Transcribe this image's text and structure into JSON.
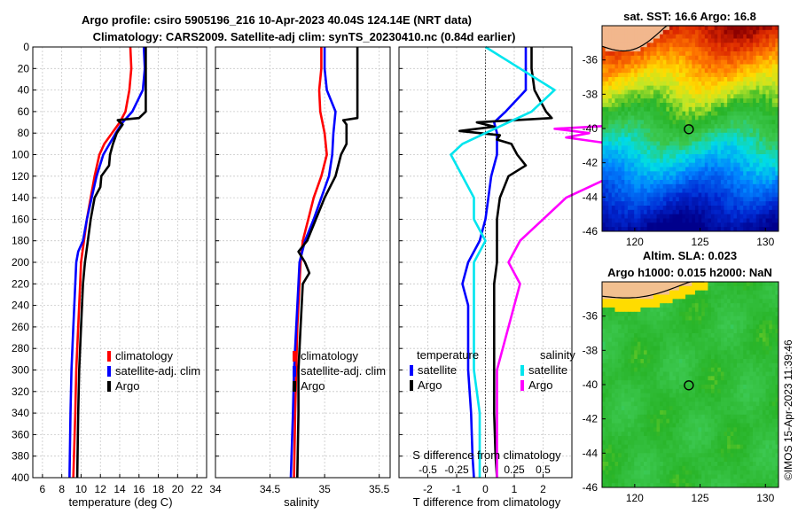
{
  "figure": {
    "title_line1": "Argo profile: csiro 5905196_216 10-Apr-2023 40.04S 124.14E (NRT data)",
    "title_line2": "Climatology: CARS2009. Satellite-adj clim: synTS_20230410.nc (0.84d earlier)",
    "watermark": "©IMOS 15-Apr-2023 11:39:46"
  },
  "colors": {
    "red": "#ff0000",
    "blue": "#0000ff",
    "black": "#000000",
    "cyan": "#00e5ee",
    "magenta": "#ff00ff"
  },
  "chart_data": [
    {
      "type": "line",
      "name": "temperature-profile",
      "xlabel": "temperature (deg C)",
      "ylabel": "",
      "xlim": [
        5,
        23
      ],
      "ylim": [
        0,
        400
      ],
      "xticks": [
        6,
        8,
        10,
        12,
        14,
        16,
        18,
        20,
        22
      ],
      "yticks": [
        0,
        20,
        40,
        60,
        80,
        100,
        120,
        140,
        160,
        180,
        200,
        220,
        240,
        260,
        280,
        300,
        320,
        340,
        360,
        380,
        400
      ],
      "legend": [
        "climatology",
        "satellite-adj. clim",
        "Argo"
      ],
      "series": [
        {
          "name": "climatology",
          "color": "red",
          "depth": [
            0,
            20,
            40,
            60,
            70,
            80,
            90,
            100,
            120,
            140,
            160,
            180,
            200,
            220,
            260,
            300,
            340,
            400
          ],
          "values": [
            15.1,
            15.2,
            15.0,
            14.6,
            14.0,
            13.2,
            12.4,
            11.9,
            11.4,
            11.0,
            10.6,
            10.3,
            10.0,
            9.9,
            9.7,
            9.5,
            9.4,
            9.2
          ]
        },
        {
          "name": "satellite-adj. clim",
          "color": "blue",
          "depth": [
            0,
            20,
            40,
            60,
            70,
            80,
            100,
            120,
            140,
            160,
            180,
            190,
            200,
            220,
            260,
            300,
            340,
            400
          ],
          "values": [
            16.5,
            16.6,
            16.4,
            15.3,
            14.3,
            13.6,
            12.3,
            11.6,
            11.1,
            10.6,
            10.2,
            9.7,
            9.5,
            9.4,
            9.2,
            9.0,
            8.9,
            8.8
          ]
        },
        {
          "name": "Argo",
          "color": "black",
          "depth": [
            0,
            20,
            40,
            60,
            66,
            68,
            72,
            80,
            90,
            100,
            110,
            120,
            130,
            140,
            160,
            180,
            200,
            220,
            260,
            300,
            340,
            400
          ],
          "values": [
            16.7,
            16.7,
            16.7,
            16.7,
            16.0,
            13.8,
            14.3,
            13.7,
            13.3,
            13.0,
            12.9,
            12.1,
            12.0,
            11.4,
            11.0,
            10.7,
            10.4,
            10.2,
            10.0,
            9.8,
            9.7,
            9.6
          ]
        }
      ]
    },
    {
      "type": "line",
      "name": "salinity-profile",
      "xlabel": "salinity",
      "xlim": [
        34.0,
        35.6
      ],
      "xticks": [
        34,
        34.5,
        35,
        35.5
      ],
      "xticklabels": [
        "34",
        "34.5",
        "35",
        "35.5"
      ],
      "legend": [
        "climatology",
        "satellite-adj. clim",
        "Argo"
      ],
      "series": [
        {
          "name": "climatology",
          "color": "red",
          "depth": [
            0,
            20,
            40,
            60,
            80,
            100,
            120,
            140,
            160,
            180,
            200,
            220,
            260,
            300,
            340,
            400
          ],
          "values": [
            34.97,
            34.97,
            34.95,
            34.96,
            35.0,
            35.02,
            34.97,
            34.9,
            34.85,
            34.8,
            34.78,
            34.77,
            34.75,
            34.74,
            34.73,
            34.72
          ]
        },
        {
          "name": "satellite-adj. clim",
          "color": "blue",
          "depth": [
            0,
            20,
            40,
            60,
            80,
            100,
            120,
            140,
            160,
            180,
            200,
            220,
            260,
            300,
            340,
            400
          ],
          "values": [
            35.0,
            35.0,
            35.02,
            35.1,
            35.08,
            35.07,
            35.04,
            34.97,
            34.9,
            34.82,
            34.77,
            34.76,
            34.74,
            34.72,
            34.71,
            34.69
          ]
        },
        {
          "name": "Argo",
          "color": "black",
          "depth": [
            0,
            20,
            40,
            60,
            66,
            68,
            72,
            80,
            90,
            100,
            120,
            140,
            160,
            180,
            190,
            195,
            200,
            210,
            220,
            260,
            300,
            340,
            400
          ],
          "values": [
            35.3,
            35.3,
            35.3,
            35.3,
            35.3,
            35.17,
            35.2,
            35.2,
            35.2,
            35.15,
            35.1,
            35.0,
            34.92,
            34.84,
            34.76,
            34.79,
            34.82,
            34.86,
            34.8,
            34.78,
            34.76,
            34.76,
            34.75
          ]
        }
      ]
    },
    {
      "type": "line",
      "name": "difference-profile",
      "xlabel": "T difference from climatology",
      "xlabel_top": "S difference from climatology",
      "xlim": [
        -3.0,
        3.0
      ],
      "xticks": [
        -2,
        -1,
        0,
        1,
        2
      ],
      "s_xticklabels": [
        "-0.5",
        "-0.25",
        "0",
        "0.25",
        "0.5"
      ],
      "s_to_t_scale": 4,
      "legend_temperature": "temperature",
      "legend_salinity": "salinity",
      "legend_entries": [
        "satellite",
        "Argo",
        "satellite",
        "Argo"
      ],
      "series": [
        {
          "name": "temperature satellite",
          "color": "blue",
          "depth": [
            0,
            20,
            40,
            60,
            70,
            80,
            100,
            120,
            140,
            160,
            180,
            200,
            220,
            240,
            260,
            300,
            340,
            380,
            400
          ],
          "values": [
            1.4,
            1.4,
            1.4,
            0.7,
            0.3,
            0.4,
            0.4,
            0.2,
            0.1,
            0.0,
            -0.2,
            -0.6,
            -0.8,
            -0.6,
            -0.6,
            -0.6,
            -0.5,
            -0.45,
            -0.4
          ]
        },
        {
          "name": "temperature Argo",
          "color": "black",
          "depth": [
            0,
            20,
            40,
            60,
            66,
            70,
            74,
            78,
            82,
            86,
            90,
            95,
            100,
            110,
            120,
            140,
            160,
            180,
            200,
            220,
            260,
            300,
            340,
            380,
            400
          ],
          "values": [
            1.6,
            1.6,
            1.7,
            2.1,
            2.3,
            -0.3,
            0.3,
            -0.9,
            0.5,
            0.4,
            0.9,
            1.0,
            1.1,
            1.4,
            0.8,
            0.5,
            0.4,
            0.4,
            0.4,
            0.3,
            0.3,
            0.3,
            0.3,
            0.35,
            0.4
          ]
        },
        {
          "name": "salinity satellite",
          "color": "cyan",
          "depth": [
            0,
            20,
            40,
            60,
            70,
            80,
            90,
            100,
            120,
            140,
            160,
            180,
            200,
            220,
            260,
            300,
            340,
            400
          ],
          "values": [
            0.0,
            0.3,
            0.6,
            0.4,
            0.2,
            0.0,
            -0.2,
            -0.3,
            -0.2,
            -0.1,
            -0.1,
            0.0,
            -0.1,
            -0.1,
            -0.1,
            -0.1,
            -0.05,
            -0.05
          ]
        },
        {
          "name": "salinity Argo",
          "color": "magenta",
          "depth": [
            0,
            20,
            40,
            60,
            70,
            76,
            80,
            84,
            90,
            100,
            120,
            140,
            160,
            180,
            200,
            220,
            260,
            300,
            340,
            400
          ],
          "values": [
            1.5,
            1.6,
            1.7,
            1.6,
            1.6,
            0.6,
            0.9,
            0.7,
            1.1,
            1.3,
            1.1,
            0.7,
            0.5,
            0.3,
            0.2,
            0.3,
            0.2,
            0.1,
            0.1,
            0.1
          ]
        }
      ]
    },
    {
      "type": "heatmap",
      "name": "sst-map",
      "title": "sat. SST: 16.6 Argo: 16.8",
      "xlim": [
        117.5,
        131
      ],
      "ylim": [
        -46,
        -34
      ],
      "xticks": [
        120,
        125,
        130
      ],
      "yticks": [
        -36,
        -38,
        -40,
        -42,
        -44,
        -46
      ],
      "marker": {
        "lon": 124.14,
        "lat": -40.04
      }
    },
    {
      "type": "heatmap",
      "name": "sla-map",
      "title_line1": "Altim. SLA: 0.023",
      "title_line2": "Argo h1000: 0.015 h2000: NaN",
      "xlim": [
        117.5,
        131
      ],
      "ylim": [
        -46,
        -34
      ],
      "xticks": [
        120,
        125,
        130
      ],
      "yticks": [
        -36,
        -38,
        -40,
        -42,
        -44,
        -46
      ],
      "marker": {
        "lon": 124.14,
        "lat": -40.04
      }
    }
  ]
}
